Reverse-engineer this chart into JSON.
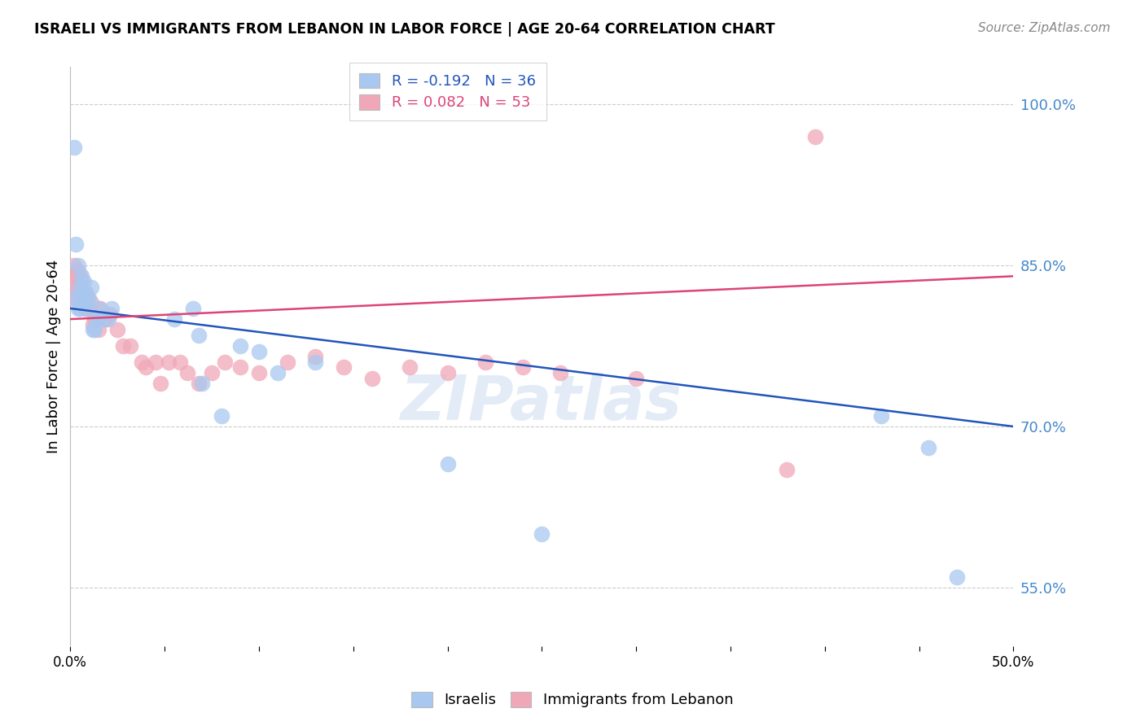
{
  "title": "ISRAELI VS IMMIGRANTS FROM LEBANON IN LABOR FORCE | AGE 20-64 CORRELATION CHART",
  "source": "Source: ZipAtlas.com",
  "ylabel": "In Labor Force | Age 20-64",
  "xlim": [
    0.0,
    0.5
  ],
  "ylim": [
    0.495,
    1.035
  ],
  "xticks": [
    0.0,
    0.05,
    0.1,
    0.15,
    0.2,
    0.25,
    0.3,
    0.35,
    0.4,
    0.45,
    0.5
  ],
  "xticklabels": [
    "0.0%",
    "",
    "",
    "",
    "",
    "",
    "",
    "",
    "",
    "",
    "50.0%"
  ],
  "ytick_positions": [
    0.55,
    0.7,
    0.85,
    1.0
  ],
  "ytick_labels": [
    "55.0%",
    "70.0%",
    "85.0%",
    "100.0%"
  ],
  "grid_color": "#cccccc",
  "background_color": "#ffffff",
  "israelis_color": "#a8c8f0",
  "lebanon_color": "#f0a8b8",
  "trendline_blue": "#2255bb",
  "trendline_pink": "#dd4477",
  "legend_R_blue": "-0.192",
  "legend_N_blue": "36",
  "legend_R_pink": "0.082",
  "legend_N_pink": "53",
  "watermark": "ZIPatlas",
  "israelis_x": [
    0.002,
    0.003,
    0.003,
    0.004,
    0.004,
    0.005,
    0.005,
    0.006,
    0.006,
    0.007,
    0.007,
    0.008,
    0.009,
    0.01,
    0.011,
    0.012,
    0.013,
    0.014,
    0.015,
    0.016,
    0.02,
    0.022,
    0.055,
    0.065,
    0.068,
    0.07,
    0.08,
    0.09,
    0.1,
    0.11,
    0.13,
    0.2,
    0.25,
    0.43,
    0.455,
    0.47
  ],
  "israelis_y": [
    0.96,
    0.82,
    0.87,
    0.81,
    0.85,
    0.81,
    0.83,
    0.84,
    0.82,
    0.835,
    0.825,
    0.81,
    0.815,
    0.82,
    0.83,
    0.79,
    0.79,
    0.8,
    0.81,
    0.8,
    0.8,
    0.81,
    0.8,
    0.81,
    0.785,
    0.74,
    0.71,
    0.775,
    0.77,
    0.75,
    0.76,
    0.665,
    0.6,
    0.71,
    0.68,
    0.56
  ],
  "lebanon_x": [
    0.001,
    0.001,
    0.002,
    0.002,
    0.003,
    0.003,
    0.004,
    0.004,
    0.005,
    0.005,
    0.006,
    0.006,
    0.007,
    0.008,
    0.008,
    0.009,
    0.009,
    0.01,
    0.011,
    0.012,
    0.013,
    0.015,
    0.016,
    0.018,
    0.019,
    0.021,
    0.025,
    0.028,
    0.032,
    0.038,
    0.04,
    0.045,
    0.048,
    0.052,
    0.058,
    0.062,
    0.068,
    0.075,
    0.082,
    0.09,
    0.1,
    0.115,
    0.13,
    0.145,
    0.16,
    0.18,
    0.2,
    0.22,
    0.24,
    0.26,
    0.3,
    0.38,
    0.395
  ],
  "lebanon_y": [
    0.82,
    0.84,
    0.83,
    0.85,
    0.82,
    0.84,
    0.83,
    0.845,
    0.83,
    0.84,
    0.825,
    0.835,
    0.82,
    0.825,
    0.81,
    0.81,
    0.82,
    0.81,
    0.815,
    0.795,
    0.8,
    0.79,
    0.81,
    0.8,
    0.8,
    0.805,
    0.79,
    0.775,
    0.775,
    0.76,
    0.755,
    0.76,
    0.74,
    0.76,
    0.76,
    0.75,
    0.74,
    0.75,
    0.76,
    0.755,
    0.75,
    0.76,
    0.765,
    0.755,
    0.745,
    0.755,
    0.75,
    0.76,
    0.755,
    0.75,
    0.745,
    0.66,
    0.97
  ],
  "blue_trendline_x": [
    0.0,
    0.5
  ],
  "blue_trendline_y": [
    0.81,
    0.7
  ],
  "pink_trendline_x": [
    0.0,
    0.5
  ],
  "pink_trendline_y": [
    0.8,
    0.84
  ]
}
